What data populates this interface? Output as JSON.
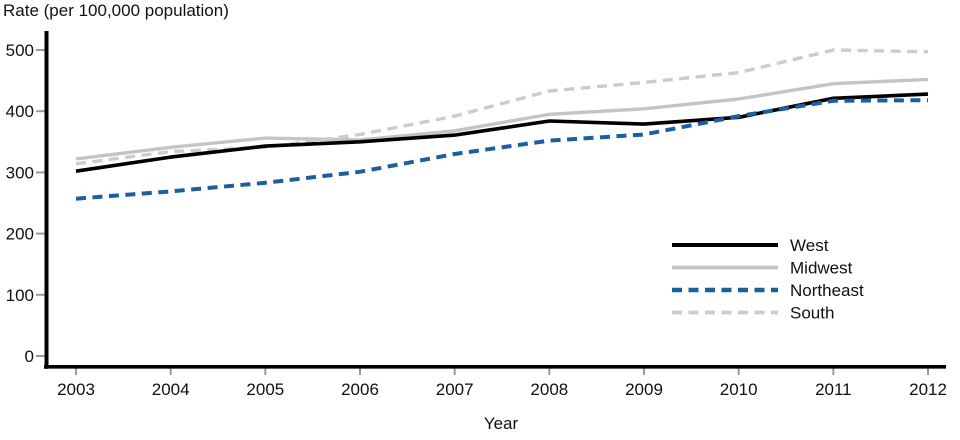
{
  "title": "Rate (per 100,000 population)",
  "chart_data": {
    "type": "line",
    "title": "Rate (per 100,000 population)",
    "xlabel": "Year",
    "ylabel": "Rate (per 100,000 population)",
    "categories": [
      "2003",
      "2004",
      "2005",
      "2006",
      "2007",
      "2008",
      "2009",
      "2010",
      "2011",
      "2012"
    ],
    "yticks": [
      "0",
      "100",
      "200",
      "300",
      "400",
      "500"
    ],
    "ytick_values": [
      0,
      100,
      200,
      300,
      400,
      500
    ],
    "ylim": [
      0,
      530
    ],
    "grid": false,
    "legend_position": "middle-right",
    "series": [
      {
        "name": "Midwest",
        "color": "#c2c4c6",
        "style": "solid",
        "stroke_width": 3.4,
        "values": [
          322,
          341,
          356,
          353,
          368,
          395,
          404,
          420,
          445,
          452
        ]
      },
      {
        "name": "South",
        "color": "#cacccd",
        "style": "dashed",
        "stroke_width": 3.4,
        "values": [
          314,
          334,
          341,
          362,
          392,
          433,
          447,
          463,
          500,
          497
        ]
      },
      {
        "name": "West",
        "color": "#000000",
        "style": "solid",
        "stroke_width": 3.6,
        "values": [
          302,
          325,
          343,
          350,
          361,
          384,
          379,
          390,
          421,
          428
        ]
      },
      {
        "name": "Northeast",
        "color": "#1b5fa3",
        "style": "dashed",
        "stroke_width": 4,
        "values": [
          257,
          269,
          283,
          301,
          330,
          352,
          362,
          392,
          417,
          418
        ]
      }
    ],
    "legend_order": [
      2,
      0,
      3,
      1
    ],
    "axis_color": "#000000",
    "tick_color": "#9b9b9d"
  },
  "layout_note": "line chart of rates per 100,000 population by US census region, 2003-2012"
}
